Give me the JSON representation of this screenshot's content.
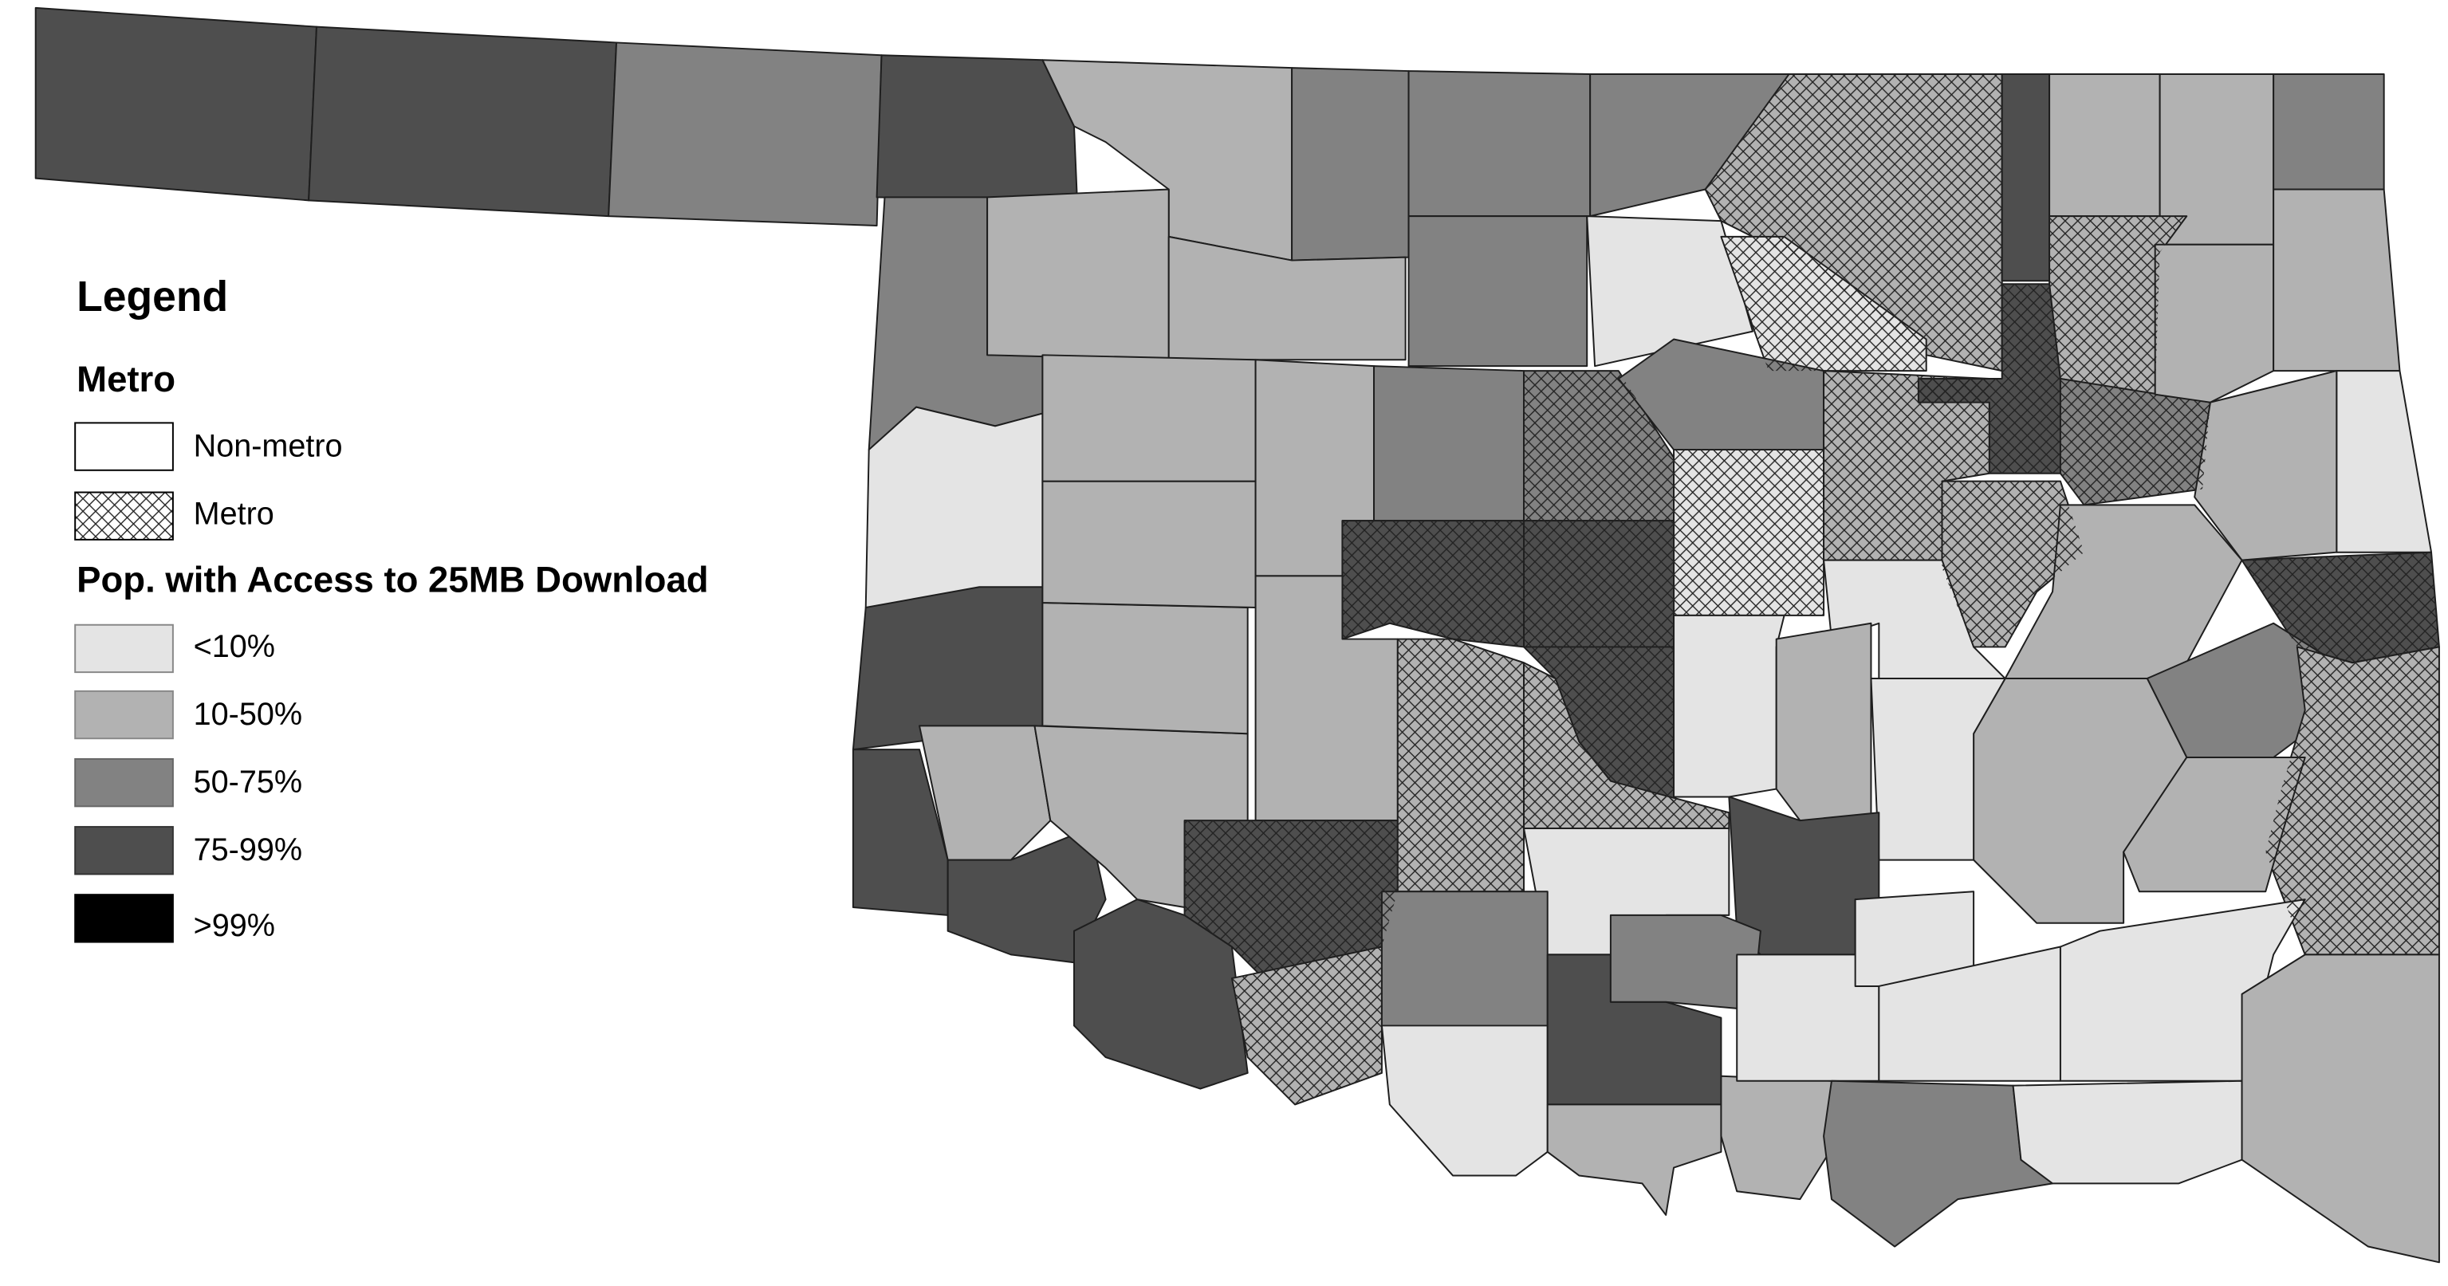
{
  "legend": {
    "title": "Legend",
    "metro_title": "Metro",
    "metro_items": [
      "Non-metro",
      "Metro"
    ],
    "access_title": "Pop. with Access to 25MB Download",
    "access_items": [
      "<10%",
      "10-50%",
      "50-75%",
      "75-99%",
      ">99%"
    ]
  }
}
